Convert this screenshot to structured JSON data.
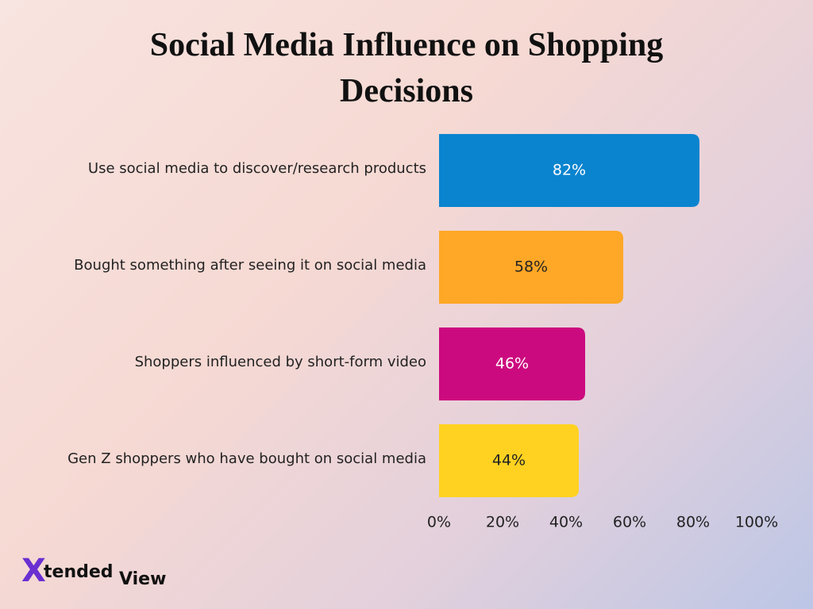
{
  "chart_data": {
    "type": "bar",
    "orientation": "horizontal",
    "title": "Social Media Influence on Shopping Decisions",
    "categories": [
      "Use social media to discover/research products",
      "Bought something after seeing it on social media",
      "Shoppers influenced by short-form video",
      "Gen Z shoppers who have bought on social media"
    ],
    "values": [
      82,
      58,
      46,
      44
    ],
    "value_labels": [
      "82%",
      "58%",
      "46%",
      "44%"
    ],
    "colors": [
      "#0a84cf",
      "#ffa726",
      "#cc0a7f",
      "#ffd221"
    ],
    "xlim": [
      0,
      100
    ],
    "xticks": [
      {
        "value": 0,
        "label": "0%"
      },
      {
        "value": 20,
        "label": "20%"
      },
      {
        "value": 40,
        "label": "40%"
      },
      {
        "value": 60,
        "label": "60%"
      },
      {
        "value": 80,
        "label": "80%"
      },
      {
        "value": 100,
        "label": "100%"
      }
    ],
    "grid": false
  },
  "logo": {
    "mark": "X",
    "text": "tended",
    "suffix": "View"
  }
}
